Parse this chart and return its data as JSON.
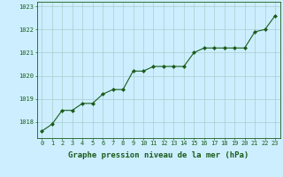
{
  "x": [
    0,
    1,
    2,
    3,
    4,
    5,
    6,
    7,
    8,
    9,
    10,
    11,
    12,
    13,
    14,
    15,
    16,
    17,
    18,
    19,
    20,
    21,
    22,
    23
  ],
  "y": [
    1017.6,
    1017.9,
    1018.5,
    1018.5,
    1018.8,
    1018.8,
    1019.2,
    1019.4,
    1019.4,
    1020.2,
    1020.2,
    1020.4,
    1020.4,
    1020.4,
    1020.4,
    1021.0,
    1021.2,
    1021.2,
    1021.2,
    1021.2,
    1021.2,
    1021.9,
    1022.0,
    1022.6
  ],
  "xlim": [
    -0.5,
    23.5
  ],
  "ylim": [
    1017.3,
    1023.2
  ],
  "yticks": [
    1018,
    1019,
    1020,
    1021,
    1022,
    1023
  ],
  "xticks": [
    0,
    1,
    2,
    3,
    4,
    5,
    6,
    7,
    8,
    9,
    10,
    11,
    12,
    13,
    14,
    15,
    16,
    17,
    18,
    19,
    20,
    21,
    22,
    23
  ],
  "xlabel": "Graphe pression niveau de la mer (hPa)",
  "line_color": "#1a5c1a",
  "marker": "D",
  "marker_size": 2.0,
  "bg_color": "#cceeff",
  "grid_color": "#aacccc",
  "axis_color": "#1a5c1a",
  "label_color": "#1a5c1a",
  "tick_label_color": "#1a5c1a",
  "tick_fontsize": 5.0,
  "ylabel_fontsize": 5.0,
  "xlabel_fontsize": 6.5
}
